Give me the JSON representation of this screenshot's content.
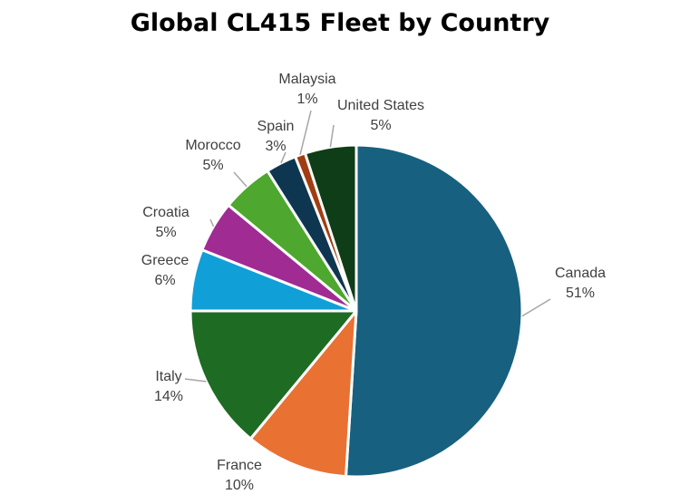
{
  "chart_data": {
    "type": "pie",
    "title": "Global CL415 Fleet by Country",
    "slices": [
      {
        "label": "Canada",
        "value": 51,
        "value_label": "51%",
        "color": "#17607f"
      },
      {
        "label": "France",
        "value": 10,
        "value_label": "10%",
        "color": "#e97132"
      },
      {
        "label": "Italy",
        "value": 14,
        "value_label": "14%",
        "color": "#1e6b24"
      },
      {
        "label": "Greece",
        "value": 6,
        "value_label": "6%",
        "color": "#119fd8"
      },
      {
        "label": "Croatia",
        "value": 5,
        "value_label": "5%",
        "color": "#a02b93"
      },
      {
        "label": "Morocco",
        "value": 5,
        "value_label": "5%",
        "color": "#4ea72e"
      },
      {
        "label": "Spain",
        "value": 3,
        "value_label": "3%",
        "color": "#0e3650"
      },
      {
        "label": "Malaysia",
        "value": 1,
        "value_label": "1%",
        "color": "#a13d12"
      },
      {
        "label": "United States",
        "value": 5,
        "value_label": "5%",
        "color": "#0f3d17"
      }
    ],
    "legend": "none",
    "data_labels": "outside with leader lines"
  }
}
